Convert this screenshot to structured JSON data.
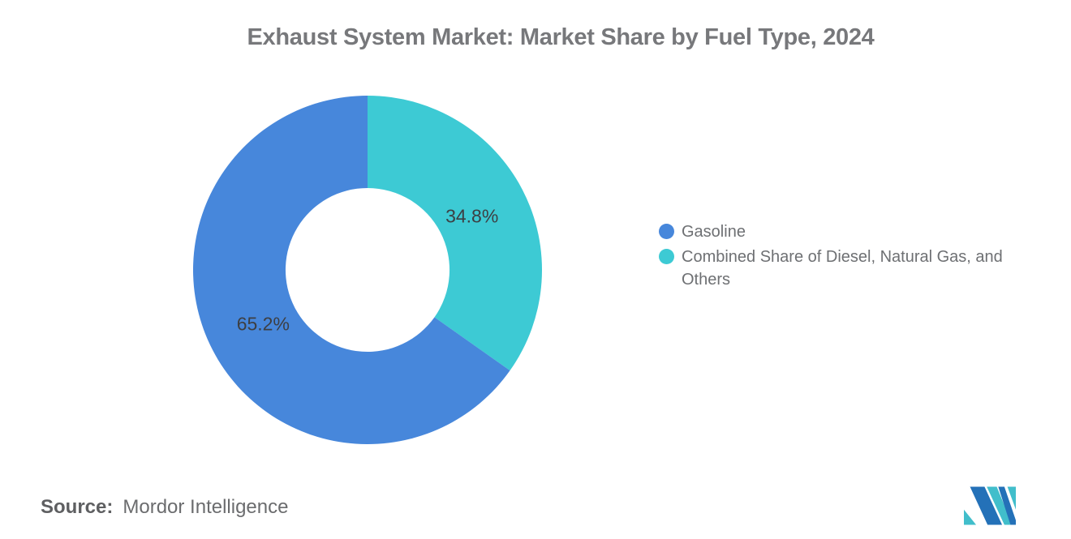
{
  "chart_data": {
    "type": "pie",
    "subtype": "donut",
    "title": "Exhaust System Market: Market Share by Fuel Type, 2024",
    "slices": [
      {
        "name": "Combined Share of Diesel, Natural Gas, and Others",
        "value": 34.8,
        "label": "34.8%",
        "color": "#3dcad4"
      },
      {
        "name": "Gasoline",
        "value": 65.2,
        "label": "65.2%",
        "color": "#4787db"
      }
    ],
    "start_angle_deg": 0,
    "direction": "clockwise",
    "inner_radius_ratio": 0.47,
    "label_radius_ratio": 0.674,
    "label_color": "#3d3f43",
    "legend_position": "right",
    "grid": "off"
  },
  "legend": {
    "items": [
      {
        "label": "Gasoline",
        "color": "#4787db"
      },
      {
        "label": "Combined Share of Diesel, Natural Gas, and Others",
        "color": "#3dcad4"
      }
    ]
  },
  "source": {
    "label": "Source:",
    "value": "Mordor Intelligence"
  },
  "logo": {
    "name": "mordor-intelligence-logo",
    "navy": "#2471b8",
    "teal": "#41becb"
  }
}
